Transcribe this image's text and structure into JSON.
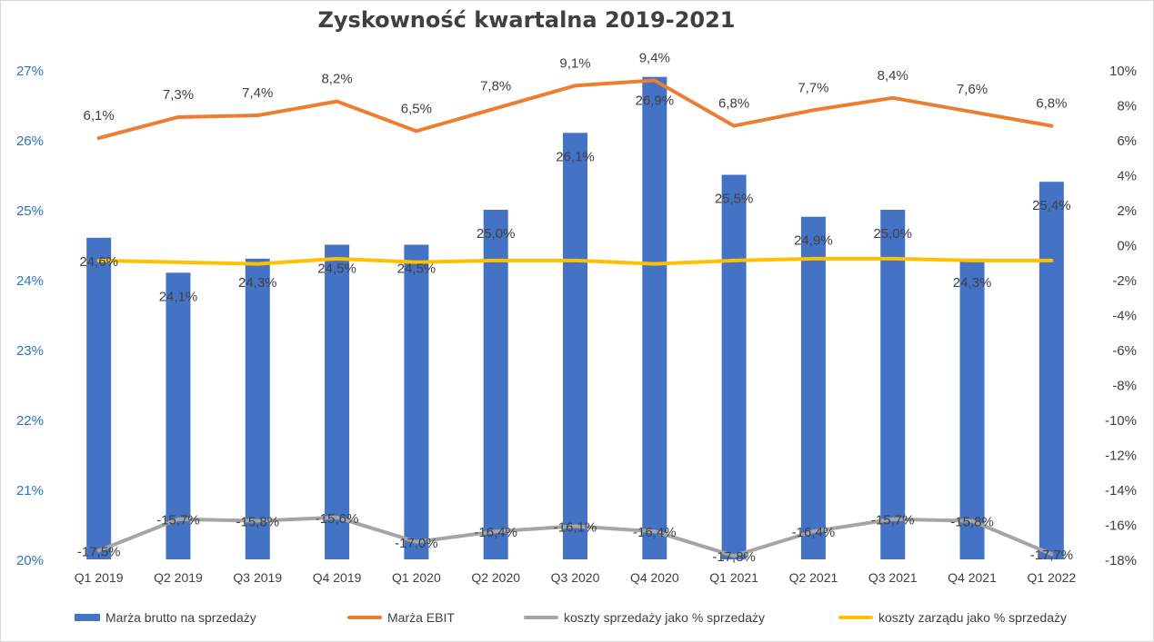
{
  "chart_data": {
    "type": "bar",
    "title": "Zyskowność kwartalna 2019-2021",
    "categories": [
      "Q1 2019",
      "Q2 2019",
      "Q3 2019",
      "Q4 2019",
      "Q1 2020",
      "Q2 2020",
      "Q3 2020",
      "Q4 2020",
      "Q1 2021",
      "Q2 2021",
      "Q3 2021",
      "Q4 2021",
      "Q1 2022"
    ],
    "left_axis": {
      "ticks": [
        "20%",
        "21%",
        "22%",
        "23%",
        "24%",
        "25%",
        "26%",
        "27%"
      ],
      "ylim": [
        20,
        27
      ],
      "color": "#2e75b6"
    },
    "right_axis": {
      "ticks": [
        "-18%",
        "-16%",
        "-14%",
        "-12%",
        "-10%",
        "-8%",
        "-6%",
        "-4%",
        "-2%",
        "0%",
        "2%",
        "4%",
        "6%",
        "8%",
        "10%"
      ],
      "ylim": [
        -18,
        10
      ]
    },
    "grid": false,
    "legend_position": "bottom",
    "series": [
      {
        "name": "Marża brutto na sprzedaży",
        "kind": "bar",
        "axis": "left",
        "color": "#4472c4",
        "values": [
          24.6,
          24.1,
          24.3,
          24.5,
          24.5,
          25.0,
          26.1,
          26.9,
          25.5,
          24.9,
          25.0,
          24.3,
          25.4
        ],
        "labels": [
          "24,6%",
          "24,1%",
          "24,3%",
          "24,5%",
          "24,5%",
          "25,0%",
          "26,1%",
          "26,9%",
          "25,5%",
          "24,9%",
          "25,0%",
          "24,3%",
          "25,4%"
        ]
      },
      {
        "name": "Marża EBIT",
        "kind": "line",
        "axis": "right",
        "color": "#ed7d31",
        "values": [
          6.1,
          7.3,
          7.4,
          8.2,
          6.5,
          7.8,
          9.1,
          9.4,
          6.8,
          7.7,
          8.4,
          7.6,
          6.8
        ],
        "labels": [
          "6,1%",
          "7,3%",
          "7,4%",
          "8,2%",
          "6,5%",
          "7,8%",
          "9,1%",
          "9,4%",
          "6,8%",
          "7,7%",
          "8,4%",
          "7,6%",
          "6,8%"
        ]
      },
      {
        "name": "koszty sprzedaży jako % sprzedaży",
        "kind": "line",
        "axis": "right",
        "color": "#a5a5a5",
        "values": [
          -17.5,
          -15.7,
          -15.8,
          -15.6,
          -17.0,
          -16.4,
          -16.1,
          -16.4,
          -17.8,
          -16.4,
          -15.7,
          -15.8,
          -17.7
        ],
        "labels": [
          "-17,5%",
          "-15,7%",
          "-15,8%",
          "-15,6%",
          "-17,0%",
          "-16,4%",
          "-16,1%",
          "-16,4%",
          "-17,8%",
          "-16,4%",
          "-15,7%",
          "-15,8%",
          "-17,7%"
        ]
      },
      {
        "name": "koszty zarządu jako % sprzedaży",
        "kind": "line",
        "axis": "right",
        "color": "#ffc000",
        "values": [
          -0.9,
          -1.0,
          -1.1,
          -0.8,
          -1.0,
          -0.9,
          -0.9,
          -1.1,
          -0.9,
          -0.8,
          -0.8,
          -0.9,
          -0.9
        ]
      }
    ]
  }
}
